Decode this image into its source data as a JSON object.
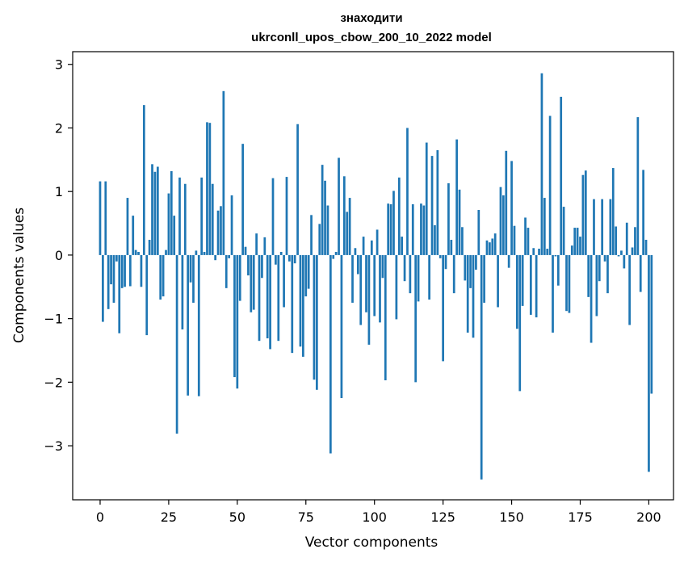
{
  "chart_data": {
    "type": "bar",
    "title_line1": "знаходити",
    "title_line2": "ukrconll_upos_cbow_200_10_2022 model",
    "xlabel": "Vector components",
    "ylabel": "Components values",
    "xlim": [
      -10,
      209
    ],
    "ylim": [
      -3.85,
      3.2
    ],
    "xticks": [
      0,
      25,
      50,
      75,
      100,
      125,
      150,
      175,
      200
    ],
    "yticks": [
      -3,
      -2,
      -1,
      0,
      1,
      2,
      3
    ],
    "ytick_labels": [
      "−3",
      "−2",
      "−1",
      "0",
      "1",
      "2",
      "3"
    ],
    "bar_color": "#1f77b4",
    "grid": false,
    "legend": "none",
    "values": [
      1.16,
      -1.05,
      1.16,
      -0.85,
      -0.46,
      -0.75,
      -0.1,
      -1.23,
      -0.52,
      -0.5,
      0.9,
      -0.49,
      0.62,
      0.08,
      0.05,
      -0.5,
      2.36,
      -1.26,
      0.24,
      1.43,
      1.31,
      1.39,
      -0.7,
      -0.65,
      0.08,
      0.97,
      1.32,
      0.62,
      -2.81,
      1.22,
      -1.17,
      1.12,
      -2.21,
      -0.43,
      -0.75,
      0.07,
      -2.22,
      1.22,
      0.05,
      2.09,
      2.08,
      1.12,
      -0.08,
      0.7,
      0.77,
      2.58,
      -0.52,
      -0.05,
      0.94,
      -1.92,
      -2.1,
      -0.72,
      1.75,
      0.13,
      -0.32,
      -0.9,
      -0.86,
      0.34,
      -1.35,
      -0.36,
      0.28,
      -1.31,
      -1.48,
      1.21,
      -0.15,
      -1.35,
      0.05,
      -0.82,
      1.23,
      -0.1,
      -1.54,
      -0.13,
      2.06,
      -1.44,
      -1.6,
      -0.65,
      -0.53,
      0.63,
      -1.96,
      -2.12,
      0.49,
      1.42,
      1.17,
      0.78,
      -3.12,
      -0.06,
      0.05,
      1.53,
      -2.25,
      1.24,
      0.68,
      0.9,
      -0.75,
      0.11,
      -0.3,
      -1.1,
      0.29,
      -0.9,
      -1.41,
      0.23,
      -0.96,
      0.4,
      -1.06,
      -0.36,
      -1.97,
      0.81,
      0.8,
      1.01,
      -1.01,
      1.22,
      0.29,
      -0.41,
      2.0,
      -0.6,
      0.8,
      -2.0,
      -0.73,
      0.81,
      0.78,
      1.77,
      -0.7,
      1.56,
      0.47,
      1.65,
      -0.05,
      -1.67,
      -0.22,
      1.13,
      0.24,
      -0.6,
      1.82,
      1.03,
      0.44,
      -0.4,
      -1.22,
      -0.52,
      -1.3,
      -0.23,
      0.71,
      -3.53,
      -0.75,
      0.23,
      0.2,
      0.26,
      0.34,
      -0.82,
      1.07,
      0.94,
      1.64,
      -0.2,
      1.48,
      0.46,
      -1.16,
      -2.14,
      -0.8,
      0.59,
      0.43,
      -0.94,
      0.11,
      -0.98,
      0.1,
      2.86,
      0.9,
      0.1,
      2.19,
      -1.22,
      -0.02,
      -0.48,
      2.49,
      0.76,
      -0.88,
      -0.91,
      0.15,
      0.43,
      0.43,
      0.29,
      1.26,
      1.33,
      -0.66,
      -1.38,
      0.88,
      -0.96,
      -0.41,
      0.88,
      -0.1,
      -0.6,
      0.88,
      1.37,
      0.45,
      -0.02,
      0.07,
      -0.21,
      0.51,
      -1.1,
      0.12,
      0.44,
      2.17,
      -0.58,
      1.34,
      0.24,
      -3.41,
      -2.18
    ]
  }
}
